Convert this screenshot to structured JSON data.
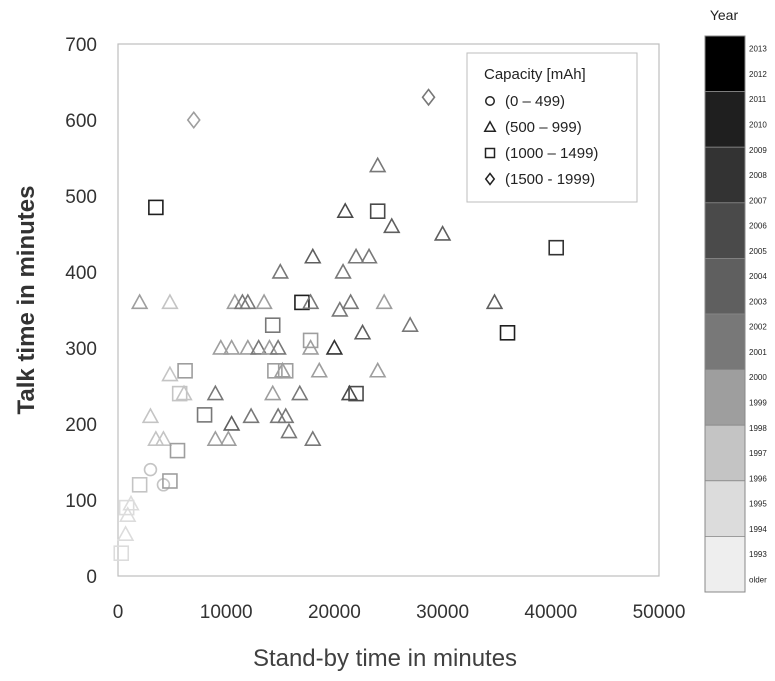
{
  "chart_data": {
    "type": "scatter",
    "xlabel": "Stand-by time in minutes",
    "ylabel": "Talk time in minutes",
    "xlim": [
      0,
      50000
    ],
    "ylim": [
      0,
      700
    ],
    "x_ticks": [
      "0",
      "10000",
      "20000",
      "30000",
      "40000",
      "50000"
    ],
    "y_ticks": [
      "0",
      "100",
      "200",
      "300",
      "400",
      "500",
      "600",
      "700"
    ],
    "grid": false,
    "legend_title": "Capacity [mAh]",
    "legend_position": "top-right",
    "legend": [
      {
        "marker": "circle",
        "label": "(0 – 499)"
      },
      {
        "marker": "triangle",
        "label": "(500 – 999)"
      },
      {
        "marker": "square",
        "label": "(1000 – 1499)"
      },
      {
        "marker": "diamond",
        "label": "(1500 - 1999)"
      }
    ],
    "colorbar": {
      "title": "Year",
      "colors": [
        "#000000",
        "#1f1f1f",
        "#333333",
        "#4a4a4a",
        "#5f5f5f",
        "#787878",
        "#9e9e9e",
        "#c4c4c4",
        "#dcdcdc",
        "#eeeeee"
      ],
      "labels": [
        "2013",
        "2012",
        "2011",
        "2010",
        "2009",
        "2008",
        "2007",
        "2006",
        "2005",
        "2004",
        "2003",
        "2002",
        "2001",
        "2000",
        "1999",
        "1998",
        "1997",
        "1996",
        "1995",
        "1994",
        "1993",
        "older"
      ]
    },
    "points": [
      {
        "x": 300,
        "y": 30,
        "m": "square",
        "c": "#dcdcdc"
      },
      {
        "x": 700,
        "y": 55,
        "m": "triangle",
        "c": "#dcdcdc"
      },
      {
        "x": 900,
        "y": 80,
        "m": "triangle",
        "c": "#dcdcdc"
      },
      {
        "x": 1200,
        "y": 95,
        "m": "triangle",
        "c": "#dcdcdc"
      },
      {
        "x": 800,
        "y": 90,
        "m": "square",
        "c": "#dcdcdc"
      },
      {
        "x": 2000,
        "y": 120,
        "m": "square",
        "c": "#c4c4c4"
      },
      {
        "x": 3000,
        "y": 140,
        "m": "circle",
        "c": "#c4c4c4"
      },
      {
        "x": 4200,
        "y": 120,
        "m": "circle",
        "c": "#c4c4c4"
      },
      {
        "x": 4800,
        "y": 125,
        "m": "square",
        "c": "#9e9e9e"
      },
      {
        "x": 3000,
        "y": 210,
        "m": "triangle",
        "c": "#c4c4c4"
      },
      {
        "x": 3500,
        "y": 180,
        "m": "triangle",
        "c": "#c4c4c4"
      },
      {
        "x": 4200,
        "y": 180,
        "m": "triangle",
        "c": "#c4c4c4"
      },
      {
        "x": 4800,
        "y": 265,
        "m": "triangle",
        "c": "#c4c4c4"
      },
      {
        "x": 5500,
        "y": 165,
        "m": "square",
        "c": "#9e9e9e"
      },
      {
        "x": 5700,
        "y": 240,
        "m": "square",
        "c": "#c4c4c4"
      },
      {
        "x": 6100,
        "y": 240,
        "m": "triangle",
        "c": "#c4c4c4"
      },
      {
        "x": 6200,
        "y": 270,
        "m": "square",
        "c": "#9e9e9e"
      },
      {
        "x": 2000,
        "y": 360,
        "m": "triangle",
        "c": "#9e9e9e"
      },
      {
        "x": 4800,
        "y": 360,
        "m": "triangle",
        "c": "#c4c4c4"
      },
      {
        "x": 7000,
        "y": 600,
        "m": "diamond",
        "c": "#9e9e9e"
      },
      {
        "x": 3500,
        "y": 485,
        "m": "square",
        "c": "#1f1f1f"
      },
      {
        "x": 8000,
        "y": 212,
        "m": "square",
        "c": "#787878"
      },
      {
        "x": 9000,
        "y": 240,
        "m": "triangle",
        "c": "#787878"
      },
      {
        "x": 9000,
        "y": 180,
        "m": "triangle",
        "c": "#9e9e9e"
      },
      {
        "x": 9500,
        "y": 300,
        "m": "triangle",
        "c": "#9e9e9e"
      },
      {
        "x": 10200,
        "y": 180,
        "m": "triangle",
        "c": "#9e9e9e"
      },
      {
        "x": 10500,
        "y": 200,
        "m": "triangle",
        "c": "#5f5f5f"
      },
      {
        "x": 10500,
        "y": 300,
        "m": "triangle",
        "c": "#9e9e9e"
      },
      {
        "x": 10800,
        "y": 360,
        "m": "triangle",
        "c": "#9e9e9e"
      },
      {
        "x": 11500,
        "y": 360,
        "m": "triangle",
        "c": "#787878"
      },
      {
        "x": 12000,
        "y": 360,
        "m": "triangle",
        "c": "#787878"
      },
      {
        "x": 12000,
        "y": 300,
        "m": "triangle",
        "c": "#9e9e9e"
      },
      {
        "x": 12300,
        "y": 210,
        "m": "triangle",
        "c": "#787878"
      },
      {
        "x": 13000,
        "y": 300,
        "m": "triangle",
        "c": "#787878"
      },
      {
        "x": 13500,
        "y": 360,
        "m": "triangle",
        "c": "#9e9e9e"
      },
      {
        "x": 14000,
        "y": 300,
        "m": "triangle",
        "c": "#9e9e9e"
      },
      {
        "x": 14300,
        "y": 330,
        "m": "square",
        "c": "#787878"
      },
      {
        "x": 14300,
        "y": 240,
        "m": "triangle",
        "c": "#9e9e9e"
      },
      {
        "x": 14500,
        "y": 270,
        "m": "square",
        "c": "#9e9e9e"
      },
      {
        "x": 14800,
        "y": 300,
        "m": "triangle",
        "c": "#787878"
      },
      {
        "x": 14800,
        "y": 210,
        "m": "triangle",
        "c": "#787878"
      },
      {
        "x": 15000,
        "y": 400,
        "m": "triangle",
        "c": "#787878"
      },
      {
        "x": 15200,
        "y": 270,
        "m": "triangle",
        "c": "#9e9e9e"
      },
      {
        "x": 15500,
        "y": 270,
        "m": "square",
        "c": "#9e9e9e"
      },
      {
        "x": 15500,
        "y": 210,
        "m": "triangle",
        "c": "#787878"
      },
      {
        "x": 15800,
        "y": 190,
        "m": "triangle",
        "c": "#787878"
      },
      {
        "x": 16800,
        "y": 240,
        "m": "triangle",
        "c": "#787878"
      },
      {
        "x": 17000,
        "y": 360,
        "m": "square",
        "c": "#1f1f1f"
      },
      {
        "x": 17800,
        "y": 360,
        "m": "triangle",
        "c": "#787878"
      },
      {
        "x": 17800,
        "y": 300,
        "m": "triangle",
        "c": "#9e9e9e"
      },
      {
        "x": 17800,
        "y": 310,
        "m": "square",
        "c": "#9e9e9e"
      },
      {
        "x": 18000,
        "y": 420,
        "m": "triangle",
        "c": "#5f5f5f"
      },
      {
        "x": 18000,
        "y": 180,
        "m": "triangle",
        "c": "#787878"
      },
      {
        "x": 18600,
        "y": 270,
        "m": "triangle",
        "c": "#9e9e9e"
      },
      {
        "x": 20000,
        "y": 300,
        "m": "triangle",
        "c": "#333333"
      },
      {
        "x": 20500,
        "y": 350,
        "m": "triangle",
        "c": "#787878"
      },
      {
        "x": 20800,
        "y": 400,
        "m": "triangle",
        "c": "#787878"
      },
      {
        "x": 21000,
        "y": 480,
        "m": "triangle",
        "c": "#4a4a4a"
      },
      {
        "x": 21400,
        "y": 240,
        "m": "triangle",
        "c": "#4a4a4a"
      },
      {
        "x": 21500,
        "y": 360,
        "m": "triangle",
        "c": "#787878"
      },
      {
        "x": 22000,
        "y": 420,
        "m": "triangle",
        "c": "#787878"
      },
      {
        "x": 22000,
        "y": 240,
        "m": "square",
        "c": "#4a4a4a"
      },
      {
        "x": 22600,
        "y": 320,
        "m": "triangle",
        "c": "#5f5f5f"
      },
      {
        "x": 23200,
        "y": 420,
        "m": "triangle",
        "c": "#787878"
      },
      {
        "x": 24000,
        "y": 480,
        "m": "square",
        "c": "#4a4a4a"
      },
      {
        "x": 24000,
        "y": 540,
        "m": "triangle",
        "c": "#787878"
      },
      {
        "x": 24000,
        "y": 270,
        "m": "triangle",
        "c": "#9e9e9e"
      },
      {
        "x": 24600,
        "y": 360,
        "m": "triangle",
        "c": "#9e9e9e"
      },
      {
        "x": 25300,
        "y": 460,
        "m": "triangle",
        "c": "#5f5f5f"
      },
      {
        "x": 27000,
        "y": 330,
        "m": "triangle",
        "c": "#787878"
      },
      {
        "x": 28700,
        "y": 630,
        "m": "diamond",
        "c": "#787878"
      },
      {
        "x": 30000,
        "y": 450,
        "m": "triangle",
        "c": "#5f5f5f"
      },
      {
        "x": 34800,
        "y": 360,
        "m": "triangle",
        "c": "#5f5f5f"
      },
      {
        "x": 36000,
        "y": 320,
        "m": "square",
        "c": "#1f1f1f"
      },
      {
        "x": 40500,
        "y": 432,
        "m": "square",
        "c": "#333333"
      }
    ]
  }
}
